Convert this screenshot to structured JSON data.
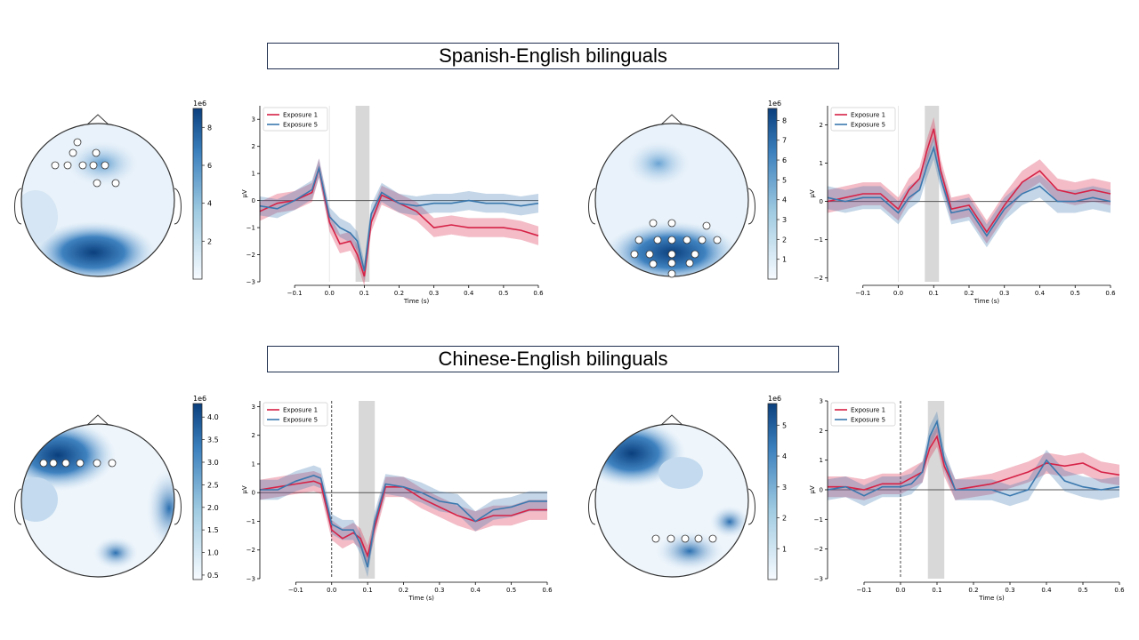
{
  "group_titles": [
    "Spanish-English bilinguals",
    "Chinese-English bilinguals"
  ],
  "colorbar_exponent": "1e6",
  "colors": {
    "exposure1": "#d62246",
    "exposure5": "#3a78ae",
    "highlight": "#d8d8d8",
    "map_dark": "#0b3f7d"
  },
  "chart_data": [
    {
      "type": "line",
      "group": "Spanish-English bilinguals",
      "xlabel": "Time (s)",
      "ylabel": "µV",
      "xlim": [
        -0.2,
        0.6
      ],
      "ylim": [
        -3,
        3.5
      ],
      "xticks": [
        -0.1,
        0.0,
        0.1,
        0.2,
        0.3,
        0.4,
        0.5,
        0.6
      ],
      "xtick_labels": [
        "−0.1",
        "0.0",
        "0.1",
        "0.2",
        "0.3",
        "0.4",
        "0.5",
        "0.6"
      ],
      "yticks": [
        -3,
        -2,
        -1,
        0,
        1,
        2,
        3
      ],
      "ytick_labels": [
        "−3",
        "−2",
        "−1",
        "0",
        "1",
        "2",
        "3"
      ],
      "highlight_window": [
        0.075,
        0.115
      ],
      "zero_line_style": "solid",
      "legend": [
        "Exposure 1",
        "Exposure 5"
      ],
      "x": [
        -0.2,
        -0.15,
        -0.1,
        -0.05,
        -0.03,
        0.0,
        0.03,
        0.06,
        0.08,
        0.1,
        0.12,
        0.15,
        0.2,
        0.25,
        0.3,
        0.35,
        0.4,
        0.45,
        0.5,
        0.55,
        0.6
      ],
      "series": [
        {
          "name": "Exposure 1",
          "values": [
            -0.4,
            -0.1,
            0.0,
            0.3,
            1.2,
            -0.8,
            -1.6,
            -1.5,
            -2.0,
            -2.8,
            -0.8,
            0.2,
            -0.1,
            -0.4,
            -1.0,
            -0.9,
            -1.0,
            -1.0,
            -1.0,
            -1.1,
            -1.3
          ],
          "ci": 0.35
        },
        {
          "name": "Exposure 5",
          "values": [
            -0.2,
            -0.3,
            0.0,
            0.4,
            1.2,
            -0.6,
            -1.0,
            -1.2,
            -1.5,
            -2.6,
            -0.5,
            0.3,
            -0.1,
            -0.2,
            -0.1,
            -0.1,
            0.0,
            -0.1,
            -0.1,
            -0.2,
            -0.1
          ],
          "ci": 0.35
        }
      ],
      "topomap": {
        "colorbar_ticks": [
          2,
          4,
          6,
          8
        ],
        "colorbar_max": 9,
        "highlighted_sensors": 10
      }
    },
    {
      "type": "line",
      "group": "Spanish-English bilinguals",
      "xlabel": "Time (s)",
      "ylabel": "µV",
      "xlim": [
        -0.2,
        0.6
      ],
      "ylim": [
        -2.1,
        2.5
      ],
      "xticks": [
        -0.1,
        0.0,
        0.1,
        0.2,
        0.3,
        0.4,
        0.5,
        0.6
      ],
      "xtick_labels": [
        "−0.1",
        "0.0",
        "0.1",
        "0.2",
        "0.3",
        "0.4",
        "0.5",
        "0.6"
      ],
      "yticks": [
        -2,
        -1,
        0,
        1,
        2
      ],
      "ytick_labels": [
        "−2",
        "−1",
        "0",
        "1",
        "2"
      ],
      "highlight_window": [
        0.075,
        0.115
      ],
      "zero_line_style": "solid",
      "legend": [
        "Exposure 1",
        "Exposure 5"
      ],
      "x": [
        -0.2,
        -0.15,
        -0.1,
        -0.05,
        0.0,
        0.03,
        0.06,
        0.08,
        0.1,
        0.12,
        0.15,
        0.2,
        0.25,
        0.3,
        0.35,
        0.4,
        0.45,
        0.5,
        0.55,
        0.6
      ],
      "series": [
        {
          "name": "Exposure 1",
          "values": [
            0.0,
            0.1,
            0.2,
            0.2,
            -0.2,
            0.3,
            0.6,
            1.3,
            1.9,
            0.8,
            -0.2,
            -0.1,
            -0.8,
            -0.1,
            0.5,
            0.8,
            0.3,
            0.2,
            0.3,
            0.2
          ],
          "ci": 0.3
        },
        {
          "name": "Exposure 5",
          "values": [
            0.1,
            0.0,
            0.1,
            0.1,
            -0.3,
            0.1,
            0.3,
            0.9,
            1.4,
            0.6,
            -0.3,
            -0.2,
            -0.9,
            -0.2,
            0.2,
            0.4,
            0.0,
            0.0,
            0.1,
            0.0
          ],
          "ci": 0.3
        }
      ],
      "topomap": {
        "colorbar_ticks": [
          1,
          2,
          3,
          4,
          5,
          6,
          7,
          8
        ],
        "colorbar_max": 8.6,
        "highlighted_sensors": 17
      }
    },
    {
      "type": "line",
      "group": "Chinese-English bilinguals",
      "xlabel": "Time (s)",
      "ylabel": "µV",
      "xlim": [
        -0.2,
        0.6
      ],
      "ylim": [
        -3,
        3.2
      ],
      "xticks": [
        -0.1,
        0.0,
        0.1,
        0.2,
        0.3,
        0.4,
        0.5,
        0.6
      ],
      "xtick_labels": [
        "−0.1",
        "0.0",
        "0.1",
        "0.2",
        "0.3",
        "0.4",
        "0.5",
        "0.6"
      ],
      "yticks": [
        -3,
        -2,
        -1,
        0,
        1,
        2,
        3
      ],
      "ytick_labels": [
        "−3",
        "−2",
        "−1",
        "0",
        "1",
        "2",
        "3"
      ],
      "highlight_window": [
        0.075,
        0.12
      ],
      "zero_line_style": "dashed",
      "legend": [
        "Exposure 1",
        "Exposure 5"
      ],
      "x": [
        -0.2,
        -0.15,
        -0.1,
        -0.05,
        -0.03,
        0.0,
        0.03,
        0.06,
        0.08,
        0.1,
        0.12,
        0.15,
        0.2,
        0.25,
        0.3,
        0.35,
        0.4,
        0.45,
        0.5,
        0.55,
        0.6
      ],
      "series": [
        {
          "name": "Exposure 1",
          "values": [
            0.1,
            0.2,
            0.3,
            0.4,
            0.3,
            -1.3,
            -1.6,
            -1.4,
            -1.6,
            -2.2,
            -1.2,
            0.2,
            0.2,
            -0.2,
            -0.5,
            -0.8,
            -1.0,
            -0.8,
            -0.8,
            -0.6,
            -0.6
          ],
          "ci": 0.35
        },
        {
          "name": "Exposure 5",
          "values": [
            0.1,
            0.1,
            0.4,
            0.6,
            0.5,
            -1.1,
            -1.3,
            -1.3,
            -1.8,
            -2.6,
            -1.0,
            0.3,
            0.2,
            0.0,
            -0.3,
            -0.4,
            -1.0,
            -0.6,
            -0.5,
            -0.3,
            -0.3
          ],
          "ci": 0.35
        }
      ],
      "topomap": {
        "colorbar_ticks": [
          0.5,
          1.0,
          1.5,
          2.0,
          2.5,
          3.0,
          3.5,
          4.0
        ],
        "colorbar_min": 0.4,
        "colorbar_max": 4.3,
        "highlighted_sensors": 6
      }
    },
    {
      "type": "line",
      "group": "Chinese-English bilinguals",
      "xlabel": "Time (s)",
      "ylabel": "µV",
      "xlim": [
        -0.2,
        0.6
      ],
      "ylim": [
        -3,
        3
      ],
      "xticks": [
        -0.1,
        0.0,
        0.1,
        0.2,
        0.3,
        0.4,
        0.5,
        0.6
      ],
      "xtick_labels": [
        "−0.1",
        "0.0",
        "0.1",
        "0.2",
        "0.3",
        "0.4",
        "0.5",
        "0.6"
      ],
      "yticks": [
        -3,
        -2,
        -1,
        0,
        1,
        2,
        3
      ],
      "ytick_labels": [
        "−3",
        "−2",
        "−1",
        "0",
        "1",
        "2",
        "3"
      ],
      "highlight_window": [
        0.075,
        0.12
      ],
      "zero_line_style": "dashed",
      "legend": [
        "Exposure 1",
        "Exposure 5"
      ],
      "x": [
        -0.2,
        -0.15,
        -0.1,
        -0.05,
        0.0,
        0.03,
        0.06,
        0.08,
        0.1,
        0.12,
        0.15,
        0.2,
        0.25,
        0.3,
        0.35,
        0.4,
        0.45,
        0.5,
        0.55,
        0.6
      ],
      "series": [
        {
          "name": "Exposure 1",
          "values": [
            0.1,
            0.1,
            0.0,
            0.2,
            0.2,
            0.4,
            0.6,
            1.4,
            1.8,
            0.8,
            0.0,
            0.1,
            0.2,
            0.4,
            0.6,
            0.9,
            0.8,
            0.9,
            0.6,
            0.5
          ],
          "ci": 0.35
        },
        {
          "name": "Exposure 5",
          "values": [
            0.0,
            0.1,
            -0.2,
            0.1,
            0.1,
            0.2,
            0.6,
            1.8,
            2.3,
            1.0,
            0.0,
            0.0,
            0.0,
            -0.2,
            0.0,
            1.0,
            0.3,
            0.1,
            0.0,
            0.1
          ],
          "ci": 0.35
        }
      ],
      "topomap": {
        "colorbar_ticks": [
          1,
          2,
          3,
          4,
          5
        ],
        "colorbar_max": 5.7,
        "highlighted_sensors": 5
      }
    }
  ]
}
